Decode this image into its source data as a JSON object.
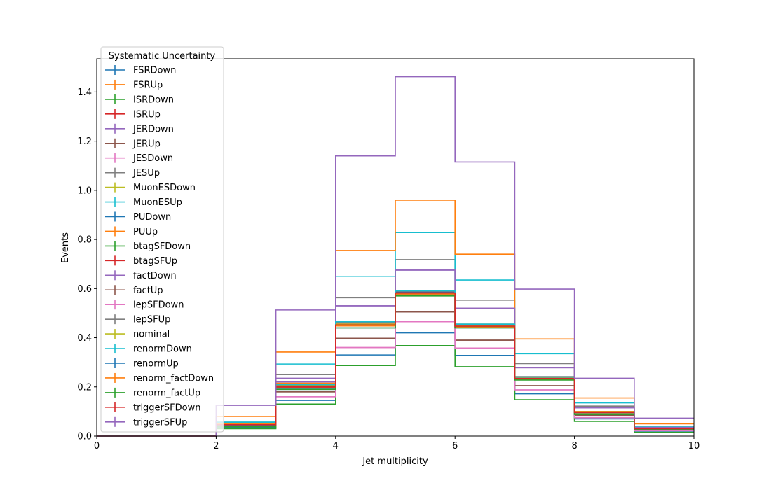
{
  "chart_data": {
    "type": "line",
    "drawstyle": "steps",
    "xlabel": "Jet multiplicity",
    "ylabel": "Events",
    "xlim": [
      0,
      10
    ],
    "ylim": [
      0,
      1.535
    ],
    "xticks": [
      "0",
      "2",
      "4",
      "6",
      "8",
      "10"
    ],
    "yticks": [
      "0.0",
      "0.2",
      "0.4",
      "0.6",
      "0.8",
      "1.0",
      "1.2",
      "1.4"
    ],
    "bin_edges": [
      0,
      1,
      2,
      3,
      4,
      5,
      6,
      7,
      8,
      9,
      10
    ],
    "grid": false,
    "legend": {
      "title": "Systematic Uncertainty",
      "placement": "upper-left"
    },
    "series": [
      {
        "name": "FSRDown",
        "color": "#1f77b4",
        "values": [
          0,
          0,
          0.045,
          0.195,
          0.455,
          0.585,
          0.45,
          0.235,
          0.095,
          0.03
        ]
      },
      {
        "name": "FSRUp",
        "color": "#ff7f0e",
        "values": [
          0,
          0,
          0.05,
          0.2,
          0.45,
          0.58,
          0.445,
          0.232,
          0.09,
          0.03
        ]
      },
      {
        "name": "ISRDown",
        "color": "#2ca02c",
        "values": [
          0,
          0,
          0.048,
          0.205,
          0.465,
          0.59,
          0.455,
          0.24,
          0.1,
          0.03
        ]
      },
      {
        "name": "ISRUp",
        "color": "#d62728",
        "values": [
          0,
          0,
          0.046,
          0.203,
          0.46,
          0.588,
          0.452,
          0.238,
          0.098,
          0.03
        ]
      },
      {
        "name": "JERDown",
        "color": "#9467bd",
        "values": [
          0,
          0,
          0.05,
          0.22,
          0.53,
          0.675,
          0.52,
          0.278,
          0.115,
          0.035
        ]
      },
      {
        "name": "JERUp",
        "color": "#8c564b",
        "values": [
          0,
          0,
          0.045,
          0.18,
          0.398,
          0.505,
          0.39,
          0.205,
          0.085,
          0.025
        ]
      },
      {
        "name": "JESDown",
        "color": "#e377c2",
        "values": [
          0,
          0,
          0.04,
          0.16,
          0.36,
          0.465,
          0.358,
          0.188,
          0.075,
          0.022
        ]
      },
      {
        "name": "JESUp",
        "color": "#7f7f7f",
        "values": [
          0,
          0,
          0.055,
          0.25,
          0.563,
          0.718,
          0.553,
          0.295,
          0.122,
          0.04
        ]
      },
      {
        "name": "MuonESDown",
        "color": "#bcbd22",
        "values": [
          0,
          0,
          0.046,
          0.2,
          0.45,
          0.575,
          0.445,
          0.232,
          0.093,
          0.03
        ]
      },
      {
        "name": "MuonESUp",
        "color": "#17becf",
        "values": [
          0,
          0,
          0.06,
          0.293,
          0.65,
          0.828,
          0.635,
          0.335,
          0.135,
          0.04
        ]
      },
      {
        "name": "PUDown",
        "color": "#1f77b4",
        "values": [
          0,
          0,
          0.035,
          0.145,
          0.33,
          0.42,
          0.328,
          0.172,
          0.07,
          0.02
        ]
      },
      {
        "name": "PUUp",
        "color": "#ff7f0e",
        "values": [
          0,
          0,
          0.08,
          0.342,
          0.755,
          0.96,
          0.74,
          0.395,
          0.155,
          0.05
        ]
      },
      {
        "name": "btagSFDown",
        "color": "#2ca02c",
        "values": [
          0,
          0,
          0.03,
          0.13,
          0.287,
          0.368,
          0.282,
          0.148,
          0.06,
          0.015
        ]
      },
      {
        "name": "btagSFUp",
        "color": "#d62728",
        "values": [
          0,
          0,
          0.045,
          0.198,
          0.455,
          0.58,
          0.448,
          0.235,
          0.095,
          0.028
        ]
      },
      {
        "name": "factDown",
        "color": "#9467bd",
        "values": [
          0,
          0,
          0.05,
          0.235,
          0.53,
          0.675,
          0.52,
          0.278,
          0.115,
          0.035
        ]
      },
      {
        "name": "factUp",
        "color": "#8c564b",
        "values": [
          0,
          0,
          0.04,
          0.18,
          0.398,
          0.505,
          0.39,
          0.205,
          0.085,
          0.025
        ]
      },
      {
        "name": "lepSFDown",
        "color": "#e377c2",
        "values": [
          0,
          0,
          0.04,
          0.16,
          0.36,
          0.465,
          0.358,
          0.188,
          0.075,
          0.022
        ]
      },
      {
        "name": "lepSFUp",
        "color": "#7f7f7f",
        "values": [
          0,
          0,
          0.048,
          0.21,
          0.462,
          0.59,
          0.455,
          0.242,
          0.098,
          0.03
        ]
      },
      {
        "name": "nominal",
        "color": "#bcbd22",
        "values": [
          0,
          0,
          0.046,
          0.2,
          0.455,
          0.58,
          0.448,
          0.235,
          0.095,
          0.03
        ]
      },
      {
        "name": "renormDown",
        "color": "#17becf",
        "values": [
          0,
          0,
          0.055,
          0.21,
          0.465,
          0.59,
          0.455,
          0.24,
          0.1,
          0.032
        ]
      },
      {
        "name": "renormUp",
        "color": "#1f77b4",
        "values": [
          0,
          0,
          0.042,
          0.19,
          0.44,
          0.575,
          0.44,
          0.23,
          0.09,
          0.028
        ]
      },
      {
        "name": "renorm_factDown",
        "color": "#ff7f0e",
        "values": [
          0,
          0,
          0.05,
          0.215,
          0.448,
          0.578,
          0.442,
          0.23,
          0.1,
          0.03
        ]
      },
      {
        "name": "renorm_factUp",
        "color": "#2ca02c",
        "values": [
          0,
          0,
          0.038,
          0.19,
          0.44,
          0.57,
          0.44,
          0.228,
          0.088,
          0.025
        ]
      },
      {
        "name": "triggerSFDown",
        "color": "#d62728",
        "values": [
          0,
          0,
          0.046,
          0.2,
          0.452,
          0.582,
          0.447,
          0.234,
          0.096,
          0.03
        ]
      },
      {
        "name": "triggerSFUp",
        "color": "#9467bd",
        "values": [
          0,
          0,
          0.125,
          0.513,
          1.14,
          1.462,
          1.115,
          0.598,
          0.235,
          0.073
        ]
      }
    ]
  }
}
